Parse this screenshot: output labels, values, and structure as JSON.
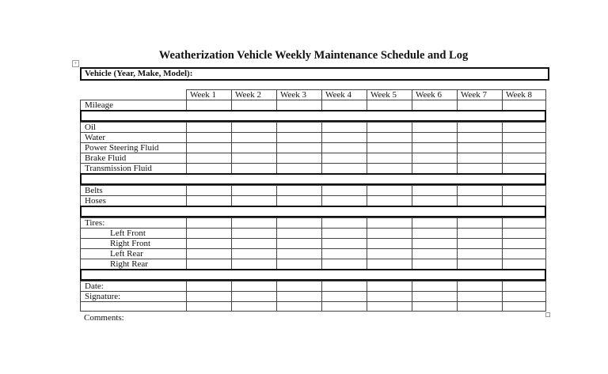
{
  "document": {
    "title": "Weatherization Vehicle Weekly Maintenance Schedule and Log",
    "vehicle_label": "Vehicle (Year, Make, Model):",
    "weeks": [
      "Week 1",
      "Week 2",
      "Week 3",
      "Week 4",
      "Week 5",
      "Week 6",
      "Week 7",
      "Week 8"
    ],
    "sections": [
      [
        {
          "label": "Mileage"
        }
      ],
      [
        {
          "label": "Oil"
        },
        {
          "label": "Water"
        },
        {
          "label": "Power Steering Fluid"
        },
        {
          "label": "Brake Fluid"
        },
        {
          "label": "Transmission Fluid"
        }
      ],
      [
        {
          "label": "Belts"
        },
        {
          "label": "Hoses"
        }
      ],
      [
        {
          "label": "Tires:"
        },
        {
          "label": "Left Front",
          "indent": true
        },
        {
          "label": "Right Front",
          "indent": true
        },
        {
          "label": "Left Rear",
          "indent": true
        },
        {
          "label": "Right Rear",
          "indent": true
        }
      ],
      [
        {
          "label": "Date:"
        },
        {
          "label": "Signature:"
        },
        {
          "label": ""
        }
      ]
    ],
    "comments_label": "Comments:"
  }
}
